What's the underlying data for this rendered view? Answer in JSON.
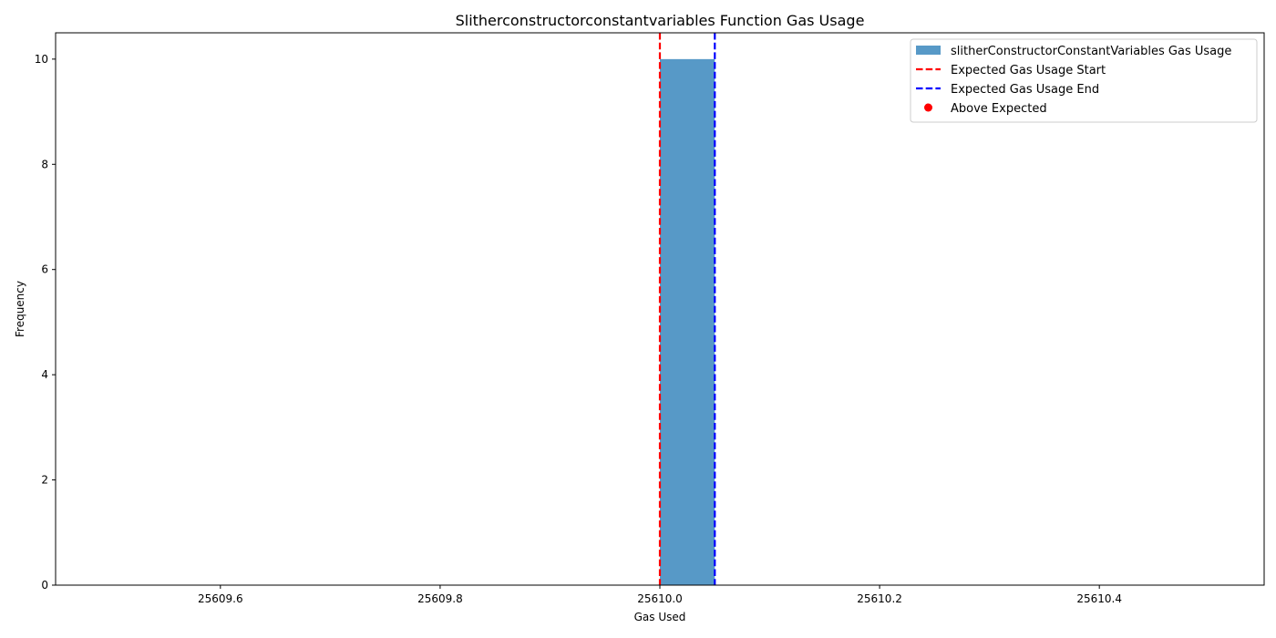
{
  "chart_data": {
    "type": "bar",
    "title": "Slitherconstructorconstantvariables Function Gas Usage",
    "xlabel": "Gas Used",
    "ylabel": "Frequency",
    "xlim": [
      25609.45,
      25610.55
    ],
    "ylim": [
      0,
      10.5
    ],
    "xticks": [
      25609.6,
      25609.8,
      25610.0,
      25610.2,
      25610.4
    ],
    "xtick_labels": [
      "25609.6",
      "25609.8",
      "25610.0",
      "25610.2",
      "25610.4"
    ],
    "yticks": [
      0,
      2,
      4,
      6,
      8,
      10
    ],
    "ytick_labels": [
      "0",
      "2",
      "4",
      "6",
      "8",
      "10"
    ],
    "grid": false,
    "legend_position": "top-right",
    "series": [
      {
        "name": "slitherConstructorConstantVariables Gas Usage",
        "kind": "histogram",
        "color": "#5799c7",
        "bins": [
          {
            "x0": 25610.0,
            "x1": 25610.05,
            "value": 10
          }
        ]
      }
    ],
    "vlines": [
      {
        "name": "Expected Gas Usage Start",
        "x": 25610.0,
        "color": "#ff0000",
        "style": "dashed"
      },
      {
        "name": "Expected Gas Usage End",
        "x": 25610.05,
        "color": "#0000ff",
        "style": "dashed"
      }
    ],
    "markers": [
      {
        "name": "Above Expected",
        "color": "#ff0000",
        "points": []
      }
    ],
    "legend": [
      {
        "label": "slitherConstructorConstantVariables Gas Usage",
        "kind": "patch",
        "color": "#5799c7"
      },
      {
        "label": "Expected Gas Usage Start",
        "kind": "dashed-line",
        "color": "#ff0000"
      },
      {
        "label": "Expected Gas Usage End",
        "kind": "dashed-line",
        "color": "#0000ff"
      },
      {
        "label": "Above Expected",
        "kind": "dot",
        "color": "#ff0000"
      }
    ]
  }
}
